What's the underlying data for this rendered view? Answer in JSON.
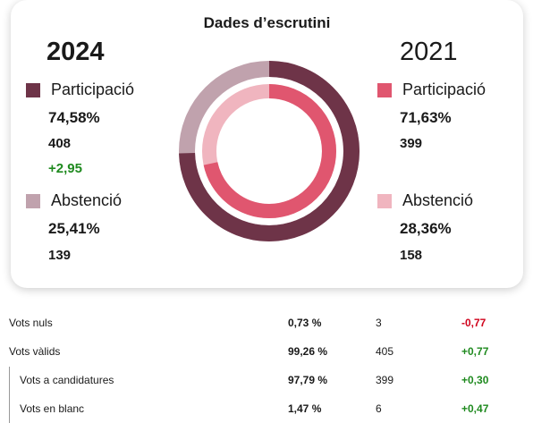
{
  "title": "Dades d’escrutini",
  "left": {
    "year": "2024",
    "participation_label": "Participació",
    "participation_pct": "74,58%",
    "participation_count": "408",
    "participation_delta": "+2,95",
    "abstention_label": "Abstenció",
    "abstention_pct": "25,41%",
    "abstention_count": "139"
  },
  "right": {
    "year": "2021",
    "participation_label": "Participació",
    "participation_pct": "71,63%",
    "participation_count": "399",
    "abstention_label": "Abstenció",
    "abstention_pct": "28,36%",
    "abstention_count": "158"
  },
  "colors": {
    "participation_2024": "#6e3448",
    "abstention_2024": "#c0a2ad",
    "participation_2021": "#e0566f",
    "abstention_2021": "#f0b5bf",
    "positive": "#1f8a1f",
    "negative": "#d0021b"
  },
  "donut": {
    "outer_participation": 0.7458,
    "inner_participation": 0.7163
  },
  "rows": [
    {
      "label": "Vots nuls",
      "pct": "0,73 %",
      "count": "3",
      "delta": "-0,77",
      "sign": "neg"
    },
    {
      "label": "Vots vàlids",
      "pct": "99,26 %",
      "count": "405",
      "delta": "+0,77",
      "sign": "pos"
    },
    {
      "label": "Vots a candidatures",
      "pct": "97,79 %",
      "count": "399",
      "delta": "+0,30",
      "sign": "pos"
    },
    {
      "label": "Vots en blanc",
      "pct": "1,47 %",
      "count": "6",
      "delta": "+0,47",
      "sign": "pos"
    }
  ]
}
